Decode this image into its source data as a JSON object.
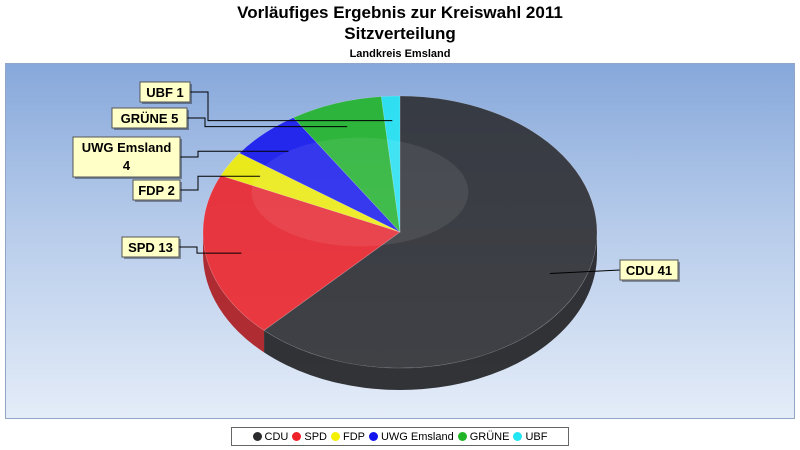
{
  "chart_data": {
    "type": "pie",
    "title": "Vorläufiges Ergebnis zur Kreiswahl 2011",
    "subtitle": "Sitzverteilung",
    "subsubtitle": "Landkreis Emsland",
    "categories": [
      "CDU",
      "SPD",
      "FDP",
      "UWG Emsland",
      "GRÜNE",
      "UBF"
    ],
    "values": [
      41,
      13,
      2,
      4,
      5,
      1
    ],
    "colors": [
      "#2b2b2e",
      "#ee2228",
      "#f4f000",
      "#1414ee",
      "#1fb526",
      "#22e6f4"
    ],
    "data_labels": [
      [
        "CDU 41"
      ],
      [
        "SPD 13"
      ],
      [
        "FDP 2"
      ],
      [
        "UWG Emsland",
        "4"
      ],
      [
        "GRÜNE 5"
      ],
      [
        "UBF 1"
      ]
    ],
    "legend_position": "bottom",
    "three_d": true
  }
}
